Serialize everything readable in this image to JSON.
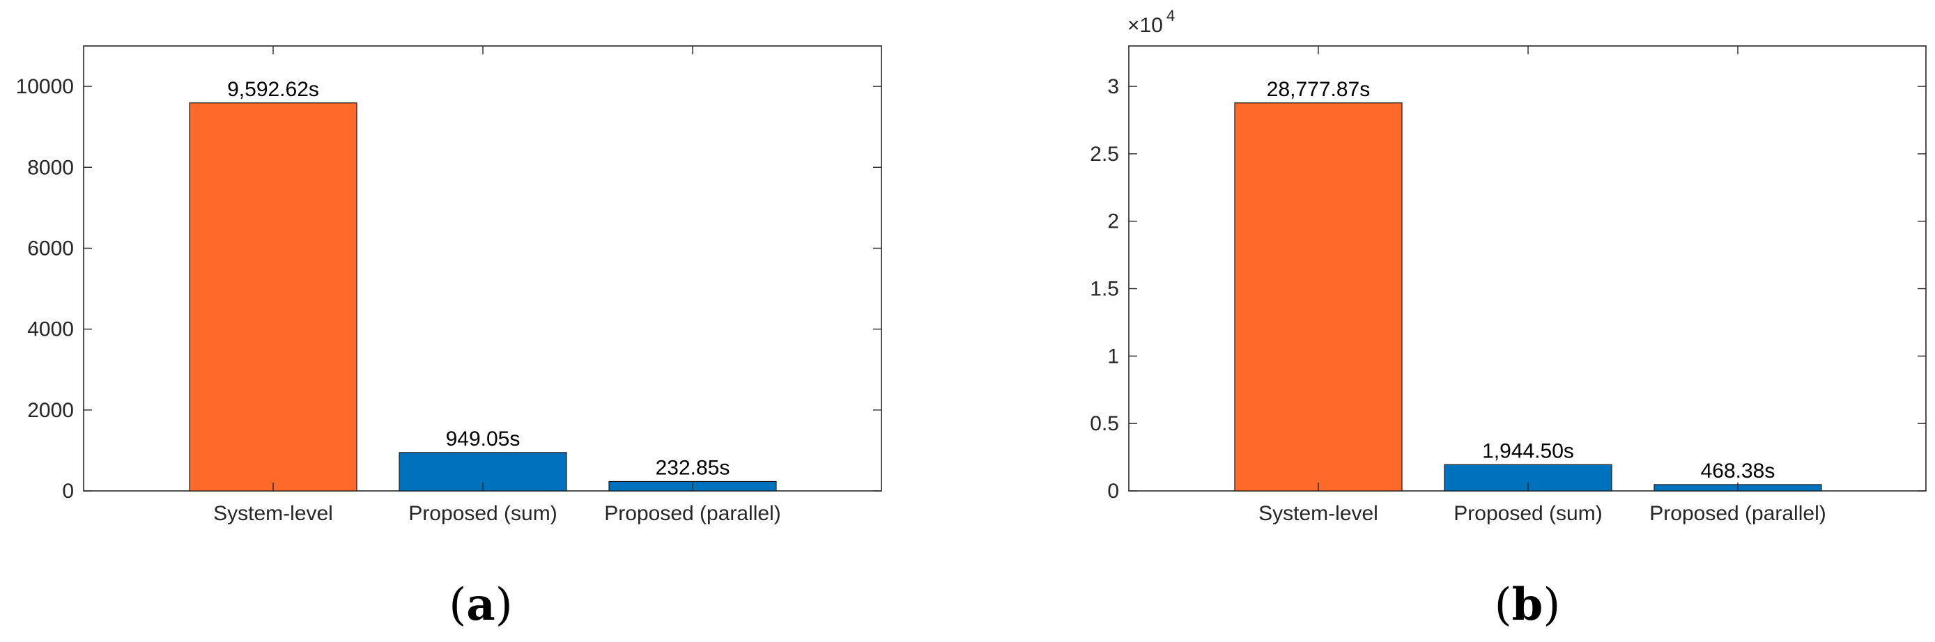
{
  "colors": {
    "highlight": "#ff6a2b",
    "primary": "#0072bd",
    "axis": "#262626"
  },
  "chart_data": [
    {
      "type": "bar",
      "panel_label": "a",
      "categories": [
        "System-level",
        "Proposed (sum)",
        "Proposed (parallel)"
      ],
      "values": [
        9592.62,
        949.05,
        232.85
      ],
      "data_labels": [
        "9,592.62s",
        "949.05s",
        "232.85s"
      ],
      "bar_colors": [
        "#ff6a2b",
        "#0072bd",
        "#0072bd"
      ],
      "ylim": [
        0,
        11000
      ],
      "yticks": [
        0,
        2000,
        4000,
        6000,
        8000,
        10000
      ],
      "ytick_labels": [
        "0",
        "2000",
        "4000",
        "6000",
        "8000",
        "10000"
      ],
      "exponent_label": "",
      "grid": false
    },
    {
      "type": "bar",
      "panel_label": "b",
      "categories": [
        "System-level",
        "Proposed (sum)",
        "Proposed (parallel)"
      ],
      "values": [
        28777.87,
        1944.5,
        468.38
      ],
      "data_labels": [
        "28,777.87s",
        "1,944.50s",
        "468.38s"
      ],
      "bar_colors": [
        "#ff6a2b",
        "#0072bd",
        "#0072bd"
      ],
      "ylim": [
        0,
        33000
      ],
      "yticks": [
        0,
        5000,
        10000,
        15000,
        20000,
        25000,
        30000
      ],
      "ytick_labels": [
        "0",
        "0.5",
        "1",
        "1.5",
        "2",
        "2.5",
        "3"
      ],
      "exponent_label": "×10",
      "exponent_power": "4",
      "grid": false
    }
  ]
}
